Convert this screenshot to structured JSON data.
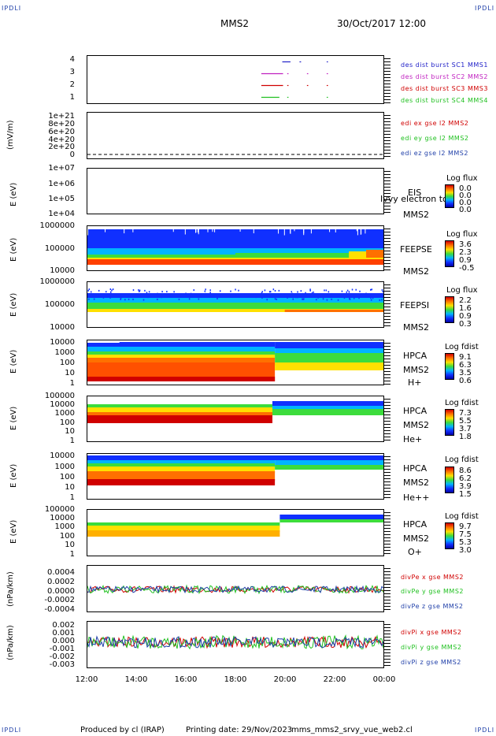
{
  "corner_label": "IPDLI",
  "header": {
    "title": "MMS2",
    "datetime": "30/Oct/2017 12:00"
  },
  "footer": {
    "producer": "Produced by cl (IRAP)",
    "printing": "Printing date: 29/Nov/2023",
    "script": "mms_mms2_srvy_vue_web2.cl"
  },
  "chart_data": [
    {
      "id": "des-burst",
      "type": "scatter",
      "ylabel": "",
      "yticks": [
        "4",
        "3",
        "2",
        "1"
      ],
      "ylim": [
        0.5,
        4.5
      ],
      "series": [
        {
          "name": "des dist burst SC1 MMS1",
          "color": "#2020c8",
          "y": 4,
          "segments": [
            [
              19.9,
              20.2
            ],
            [
              20.6,
              20.63
            ],
            [
              21.7,
              21.72
            ]
          ]
        },
        {
          "name": "des dist burst SC2 MMS2",
          "color": "#c020c0",
          "y": 3,
          "segments": [
            [
              19.05,
              19.9
            ],
            [
              20.1,
              20.12
            ],
            [
              20.9,
              20.92
            ],
            [
              21.7,
              21.72
            ]
          ]
        },
        {
          "name": "des dist burst SC3 MMS3",
          "color": "#d00000",
          "y": 2,
          "segments": [
            [
              19.05,
              19.9
            ],
            [
              20.1,
              20.12
            ],
            [
              20.9,
              20.92
            ],
            [
              21.7,
              21.72
            ]
          ]
        },
        {
          "name": "des dist burst SC4 MMS4",
          "color": "#20c020",
          "y": 1,
          "segments": [
            [
              19.05,
              19.75
            ],
            [
              20.1,
              20.12
            ],
            [
              21.7,
              21.72
            ]
          ]
        }
      ]
    },
    {
      "id": "edi",
      "type": "line",
      "ylabel": "(mV/m)",
      "yticks": [
        "1e+21",
        "8e+20",
        "6e+20",
        "4e+20",
        "2e+20",
        "0"
      ],
      "ylim": [
        0,
        1e+21
      ],
      "series": [
        {
          "name": "edi ex gse l2 MMS2",
          "color": "#d00000"
        },
        {
          "name": "edi ey gse l2 MMS2",
          "color": "#20c020"
        },
        {
          "name": "edi ez gse l2 MMS2",
          "color": "#1f3fa8"
        }
      ]
    },
    {
      "id": "eis",
      "type": "heatmap",
      "ylabel": "E (eV)",
      "yticks": [
        "1e+07",
        "1e+06",
        "1e+05",
        "1e+04"
      ],
      "instrument": [
        "EIS",
        "MMS2"
      ],
      "overlay_text": "Ivvy electron to",
      "colorbar": {
        "title": "Log flux",
        "values": [
          "0.0",
          "0.0",
          "0.0",
          "0.0"
        ]
      }
    },
    {
      "id": "feepse",
      "type": "heatmap",
      "ylabel": "E (eV)",
      "yticks": [
        "1000000",
        "100000",
        "10000"
      ],
      "instrument": [
        "FEEPSE",
        "MMS2"
      ],
      "colorbar": {
        "title": "Log flux",
        "values": [
          "3.6",
          "2.3",
          "0.9",
          "-0.5"
        ]
      }
    },
    {
      "id": "feepsi",
      "type": "heatmap",
      "ylabel": "E (eV)",
      "yticks": [
        "1000000",
        "100000",
        "10000"
      ],
      "instrument": [
        "FEEPSI",
        "MMS2"
      ],
      "colorbar": {
        "title": "Log flux",
        "values": [
          "2.2",
          "1.6",
          "0.9",
          "0.3"
        ]
      }
    },
    {
      "id": "hpca-h",
      "type": "heatmap",
      "ylabel": "E (eV)",
      "yticks": [
        "10000",
        "1000",
        "100",
        "10",
        "1"
      ],
      "instrument": [
        "HPCA",
        "MMS2",
        "H+"
      ],
      "colorbar": {
        "title": "Log fdist",
        "values": [
          "9.1",
          "6.3",
          "3.5",
          "0.6"
        ]
      }
    },
    {
      "id": "hpca-he",
      "type": "heatmap",
      "ylabel": "E (eV)",
      "yticks": [
        "100000",
        "10000",
        "1000",
        "100",
        "10",
        "1"
      ],
      "instrument": [
        "HPCA",
        "MMS2",
        "He+"
      ],
      "colorbar": {
        "title": "Log fdist",
        "values": [
          "7.3",
          "5.5",
          "3.7",
          "1.8"
        ]
      }
    },
    {
      "id": "hpca-hepp",
      "type": "heatmap",
      "ylabel": "E (eV)",
      "yticks": [
        "10000",
        "1000",
        "100",
        "10",
        "1"
      ],
      "instrument": [
        "HPCA",
        "MMS2",
        "He++"
      ],
      "colorbar": {
        "title": "Log fdist",
        "values": [
          "8.6",
          "6.2",
          "3.9",
          "1.5"
        ]
      }
    },
    {
      "id": "hpca-o",
      "type": "heatmap",
      "ylabel": "E (eV)",
      "yticks": [
        "100000",
        "10000",
        "1000",
        "100",
        "10",
        "1"
      ],
      "instrument": [
        "HPCA",
        "MMS2",
        "O+"
      ],
      "colorbar": {
        "title": "Log fdist",
        "values": [
          "9.7",
          "7.5",
          "5.3",
          "3.0"
        ]
      }
    },
    {
      "id": "divpe",
      "type": "line",
      "ylabel": "(nPa/km)",
      "yticks": [
        "0.0004",
        "0.0002",
        "0.0000",
        "-0.0002",
        "-0.0004"
      ],
      "ylim": [
        -0.0005,
        0.0005
      ],
      "series": [
        {
          "name": "divPe x gse MMS2",
          "color": "#d00000"
        },
        {
          "name": "divPe y gse MMS2",
          "color": "#20c020"
        },
        {
          "name": "divPe z gse MMS2",
          "color": "#1f3fa8"
        }
      ]
    },
    {
      "id": "divpi",
      "type": "line",
      "ylabel": "(nPa/km)",
      "yticks": [
        "0.002",
        "0.001",
        "0.000",
        "-0.001",
        "-0.002",
        "-0.003"
      ],
      "ylim": [
        -0.0035,
        0.0025
      ],
      "series": [
        {
          "name": "divPi x gse MMS2",
          "color": "#d00000"
        },
        {
          "name": "divPi y gse MMS2",
          "color": "#20c020"
        },
        {
          "name": "divPi z gse MMS2",
          "color": "#1f3fa8"
        }
      ]
    }
  ],
  "xaxis": {
    "ticks": [
      "12:00",
      "14:00",
      "16:00",
      "18:00",
      "20:00",
      "22:00",
      "00:00"
    ],
    "range_hours": [
      12,
      24
    ]
  }
}
